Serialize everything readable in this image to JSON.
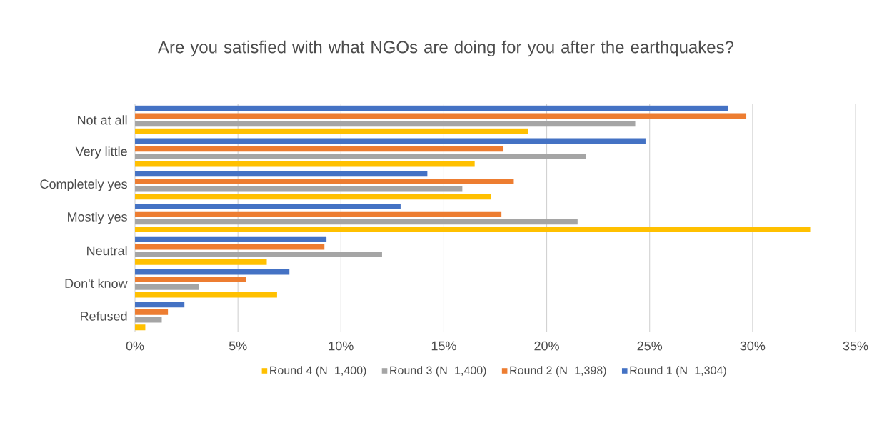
{
  "chart_data": {
    "type": "bar",
    "orientation": "horizontal",
    "title": "Are you satisfied with what NGOs are doing for you after the earthquakes?",
    "categories": [
      "Not at all",
      "Very little",
      "Completely yes",
      "Mostly yes",
      "Neutral",
      "Don't know",
      "Refused"
    ],
    "series": [
      {
        "name": "Round 4 (N=1,400)",
        "color": "#ffc000",
        "values": [
          19.1,
          16.5,
          17.3,
          32.8,
          6.4,
          6.9,
          0.5
        ]
      },
      {
        "name": "Round 3 (N=1,400)",
        "color": "#a5a5a5",
        "values": [
          24.3,
          21.9,
          15.9,
          21.5,
          12.0,
          3.1,
          1.3
        ]
      },
      {
        "name": "Round 2 (N=1,398)",
        "color": "#ed7d31",
        "values": [
          29.7,
          17.9,
          18.4,
          17.8,
          9.2,
          5.4,
          1.6
        ]
      },
      {
        "name": "Round 1 (N=1,304)",
        "color": "#4472c4",
        "values": [
          28.8,
          24.8,
          14.2,
          12.9,
          9.3,
          7.5,
          2.4
        ]
      }
    ],
    "xlim": [
      0,
      35
    ],
    "xticks": [
      {
        "value": 0,
        "label": "0%"
      },
      {
        "value": 5,
        "label": "5%"
      },
      {
        "value": 10,
        "label": "10%"
      },
      {
        "value": 15,
        "label": "15%"
      },
      {
        "value": 20,
        "label": "20%"
      },
      {
        "value": 25,
        "label": "25%"
      },
      {
        "value": 30,
        "label": "30%"
      },
      {
        "value": 35,
        "label": "35%"
      }
    ],
    "grid": "x",
    "legend": "bottom"
  }
}
